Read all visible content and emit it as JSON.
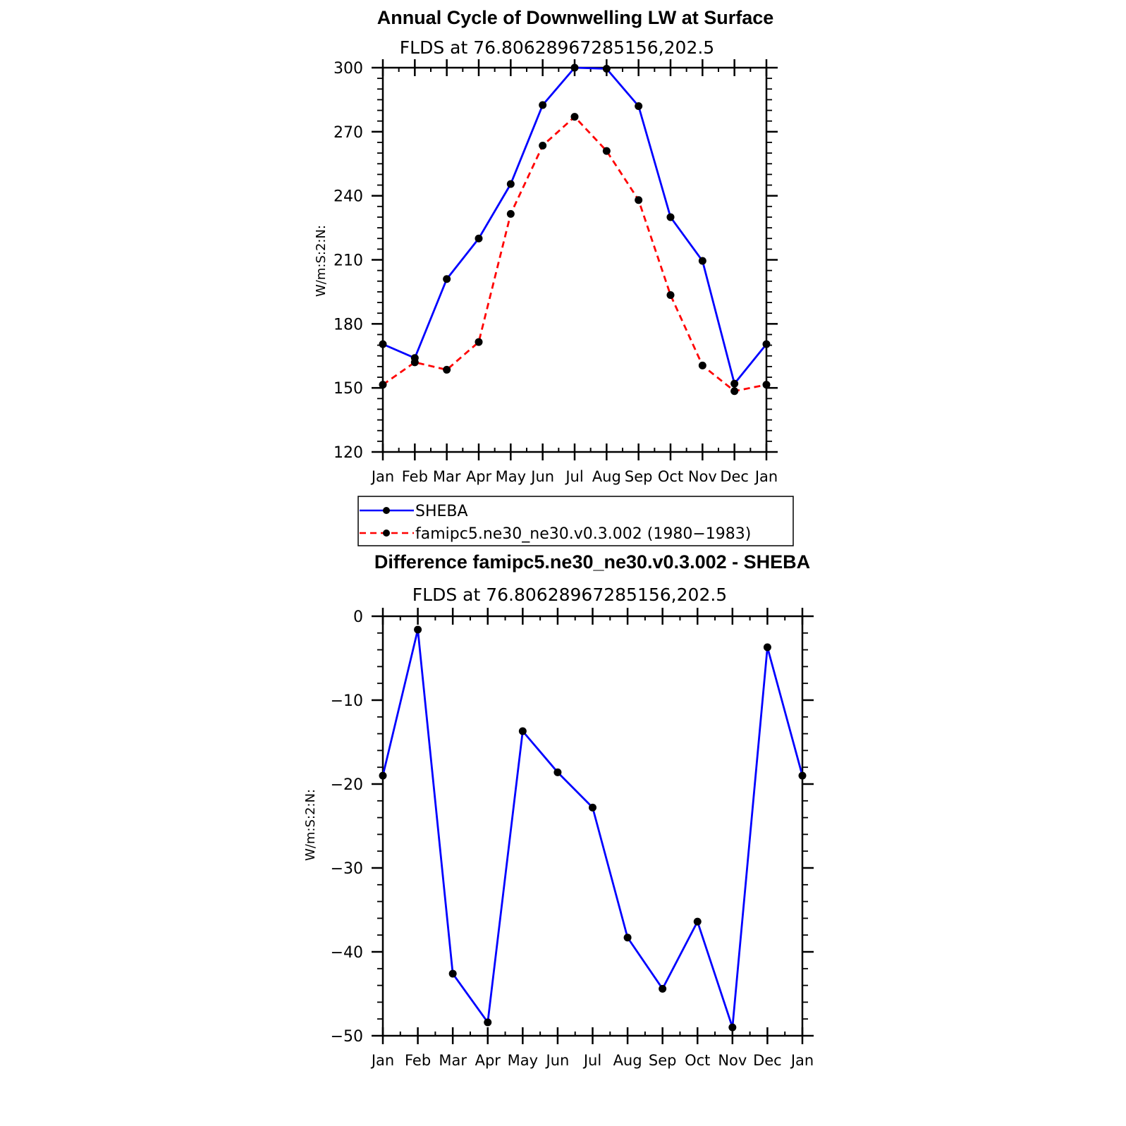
{
  "chart_data": [
    {
      "type": "line",
      "title": "Annual Cycle of Downwelling LW at Surface",
      "subtitle": "FLDS at 76.80628967285156,202.5",
      "ylabel": "W/m:S:2:N:",
      "xlabel": "",
      "categories": [
        "Jan",
        "Feb",
        "Mar",
        "Apr",
        "May",
        "Jun",
        "Jul",
        "Aug",
        "Sep",
        "Oct",
        "Nov",
        "Dec",
        "Jan"
      ],
      "ylim": [
        120,
        300
      ],
      "yticks": [
        120,
        150,
        180,
        210,
        240,
        270,
        300
      ],
      "series": [
        {
          "name": "SHEBA",
          "color": "#0000ff",
          "dash": "solid",
          "values": [
            170.5,
            164,
            201,
            220,
            245.5,
            282.5,
            300,
            299.5,
            282,
            230,
            209.5,
            152,
            170.5
          ]
        },
        {
          "name": "famipc5.ne30_ne30.v0.3.002 (1980-1983)",
          "color": "#ff0000",
          "dash": "dashed",
          "values": [
            151.5,
            162,
            158.5,
            171.5,
            231.5,
            263.5,
            277,
            261,
            238,
            193.5,
            160.5,
            148.5,
            151.5
          ]
        }
      ],
      "legend": {
        "position": "below",
        "items": [
          "SHEBA",
          "famipc5.ne30_ne30.v0.3.002 (1980−1983)"
        ]
      }
    },
    {
      "type": "line",
      "title": "Difference famipc5.ne30_ne30.v0.3.002 - SHEBA",
      "subtitle": "FLDS at 76.80628967285156,202.5",
      "ylabel": "W/m:S:2:N:",
      "xlabel": "",
      "categories": [
        "Jan",
        "Feb",
        "Mar",
        "Apr",
        "May",
        "Jun",
        "Jul",
        "Aug",
        "Sep",
        "Oct",
        "Nov",
        "Dec",
        "Jan"
      ],
      "ylim": [
        -50,
        0
      ],
      "yticks": [
        -50,
        -40,
        -30,
        -20,
        -10,
        0
      ],
      "ytick_labels": [
        "−50",
        "−40",
        "−30",
        "−20",
        "−10",
        "0"
      ],
      "series": [
        {
          "color": "#0000ff",
          "dash": "solid",
          "values": [
            -19,
            -1.6,
            -42.6,
            -48.4,
            -13.7,
            -18.6,
            -22.8,
            -38.3,
            -44.4,
            -36.4,
            -49,
            -3.7,
            -19
          ]
        }
      ]
    }
  ]
}
